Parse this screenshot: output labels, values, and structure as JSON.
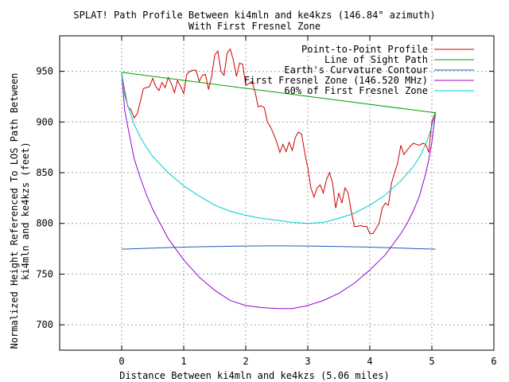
{
  "chart_data": {
    "type": "line",
    "title": "SPLAT! Path Profile Between ki4mln and ke4kzs (146.84° azimuth)",
    "subtitle": "With First Fresnel Zone",
    "xlabel": "Distance Between ki4mln and ke4kzs (5.06 miles)",
    "ylabel_line1": "Normalized Height Referenced To LOS Path Between",
    "ylabel_line2": "ki4mln and ke4kzs (feet)",
    "xlim": [
      -1,
      6
    ],
    "ylim": [
      675,
      985
    ],
    "xticks": [
      0,
      1,
      2,
      3,
      4,
      5,
      6
    ],
    "yticks": [
      700,
      750,
      800,
      850,
      900,
      950
    ],
    "grid": true,
    "legend_position": "top-right",
    "series": [
      {
        "name": "Point-to-Point Profile",
        "color": "#cc0000",
        "x": [
          0,
          0.05,
          0.1,
          0.15,
          0.2,
          0.25,
          0.3,
          0.35,
          0.4,
          0.45,
          0.5,
          0.55,
          0.6,
          0.65,
          0.7,
          0.75,
          0.8,
          0.85,
          0.9,
          0.95,
          1.0,
          1.05,
          1.1,
          1.15,
          1.2,
          1.25,
          1.3,
          1.35,
          1.4,
          1.45,
          1.5,
          1.55,
          1.6,
          1.65,
          1.7,
          1.75,
          1.8,
          1.85,
          1.9,
          1.95,
          2.0,
          2.05,
          2.1,
          2.15,
          2.2,
          2.25,
          2.3,
          2.35,
          2.4,
          2.45,
          2.5,
          2.55,
          2.6,
          2.65,
          2.7,
          2.75,
          2.8,
          2.85,
          2.9,
          2.95,
          3.0,
          3.05,
          3.1,
          3.15,
          3.2,
          3.25,
          3.3,
          3.35,
          3.4,
          3.45,
          3.5,
          3.55,
          3.6,
          3.65,
          3.7,
          3.75,
          3.8,
          3.85,
          3.9,
          3.95,
          4.0,
          4.05,
          4.1,
          4.15,
          4.2,
          4.25,
          4.3,
          4.35,
          4.4,
          4.45,
          4.5,
          4.55,
          4.6,
          4.65,
          4.7,
          4.75,
          4.8,
          4.85,
          4.9,
          4.95,
          5.0,
          5.06
        ],
        "values": [
          948,
          930,
          915,
          912,
          904,
          908,
          920,
          933,
          934,
          935,
          943,
          935,
          931,
          939,
          934,
          944,
          938,
          929,
          941,
          935,
          928,
          947,
          950,
          951,
          951,
          940,
          946,
          947,
          932,
          945,
          966,
          970,
          950,
          946,
          968,
          972,
          961,
          945,
          958,
          957,
          936,
          938,
          940,
          930,
          915,
          916,
          914,
          900,
          895,
          888,
          880,
          870,
          878,
          871,
          880,
          872,
          885,
          890,
          888,
          870,
          855,
          835,
          826,
          835,
          838,
          830,
          843,
          850,
          840,
          815,
          830,
          820,
          835,
          830,
          812,
          797,
          797,
          798,
          797,
          797,
          790,
          790,
          795,
          800,
          815,
          820,
          818,
          840,
          850,
          860,
          877,
          868,
          872,
          876,
          879,
          878,
          877,
          879,
          878,
          870,
          900,
          910
        ]
      },
      {
        "name": "Line of Sight Path",
        "color": "#00a000",
        "x": [
          0,
          5.06
        ],
        "values": [
          949,
          909
        ]
      },
      {
        "name": "Earth's Curvature Contour",
        "color": "#1560bd",
        "x": [
          0,
          0.5,
          1.0,
          1.5,
          2.0,
          2.53,
          3.0,
          3.5,
          4.0,
          4.5,
          5.06
        ],
        "values": [
          774.6,
          775.7,
          776.6,
          777.3,
          777.7,
          777.9,
          777.7,
          777.3,
          776.6,
          775.7,
          774.6
        ]
      },
      {
        "name": "First Fresnel Zone (146.520 MHz)",
        "color": "#9400d3",
        "x": [
          0,
          0.05,
          0.1,
          0.2,
          0.3,
          0.4,
          0.5,
          0.75,
          1.0,
          1.25,
          1.5,
          1.75,
          2.0,
          2.25,
          2.53,
          2.75,
          3.0,
          3.25,
          3.5,
          3.75,
          4.0,
          4.25,
          4.5,
          4.6,
          4.7,
          4.8,
          4.9,
          4.95,
          5.0,
          5.06
        ],
        "values": [
          949,
          911,
          895,
          864,
          845,
          828,
          814,
          785,
          764,
          747,
          734,
          724,
          719,
          717,
          716,
          716,
          719,
          724,
          731,
          741,
          754,
          769,
          790,
          800,
          812,
          827,
          849,
          863,
          880,
          909
        ]
      },
      {
        "name": "60% of First Fresnel Zone",
        "color": "#00cccc",
        "x": [
          0,
          0.05,
          0.1,
          0.2,
          0.3,
          0.4,
          0.5,
          0.75,
          1.0,
          1.25,
          1.5,
          1.75,
          2.0,
          2.25,
          2.53,
          2.75,
          3.0,
          3.25,
          3.5,
          3.75,
          4.0,
          4.25,
          4.5,
          4.6,
          4.7,
          4.8,
          4.9,
          4.95,
          5.0,
          5.06
        ],
        "values": [
          949,
          926,
          916,
          898,
          885,
          875,
          866,
          850,
          837,
          827,
          818,
          812,
          808,
          805,
          803,
          801,
          800,
          801,
          805,
          810,
          818,
          828,
          842,
          849,
          856,
          865,
          878,
          886,
          896,
          909
        ]
      }
    ]
  }
}
